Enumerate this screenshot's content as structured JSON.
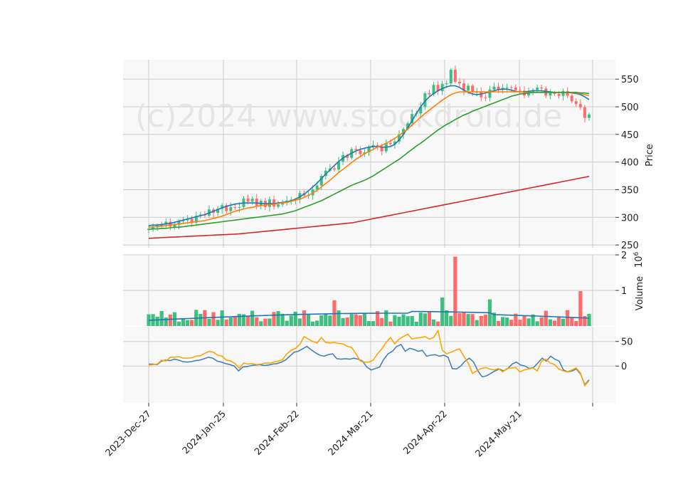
{
  "watermark": "(c)2024 www.stockdroid.de",
  "colors": {
    "up": "#26a69a",
    "up_fill": "#3fbf7f",
    "down": "#ef5350",
    "down_fill": "#ff6b6b",
    "ma_fast": "#1f77b4",
    "ma_mid": "#ff7f0e",
    "ma_slow": "#2ca02c",
    "ma_long": "#d62728",
    "vol_ma": "#1f77b4",
    "osc_a": "#4682b4",
    "osc_b": "#ffa500",
    "panel_bg": "#f8f8f8",
    "grid": "#cccccc"
  },
  "chart_data": [
    {
      "type": "candlestick",
      "ylabel": "Price",
      "ylim": [
        245,
        585
      ],
      "yticks": [
        "250",
        "300",
        "350",
        "400",
        "450",
        "500",
        "550"
      ],
      "grid": true,
      "ohlc": [],
      "series_ma": [
        {
          "values": [
            285,
            286,
            286,
            287,
            288,
            289,
            291,
            293,
            295,
            297,
            299,
            301,
            303,
            305,
            308,
            311,
            314,
            317,
            320,
            322,
            324,
            325,
            326,
            326,
            326,
            326,
            325,
            325,
            325,
            325,
            326,
            327,
            328,
            330,
            333,
            337,
            342,
            348,
            355,
            362,
            370,
            378,
            386,
            394,
            401,
            407,
            412,
            416,
            420,
            423,
            425,
            427,
            428,
            428,
            427,
            427,
            428,
            432,
            440,
            450,
            462,
            475,
            488,
            500,
            510,
            518,
            524,
            529,
            533,
            536,
            538,
            538,
            535,
            530,
            526,
            523,
            522,
            523,
            525,
            527,
            529,
            531,
            532,
            532,
            530,
            528,
            527,
            527,
            528,
            529,
            529,
            529,
            528,
            527,
            526,
            526,
            526,
            526,
            525,
            524,
            522,
            518,
            513
          ]
        },
        {
          "values": [
            282,
            283,
            283,
            284,
            285,
            286,
            287,
            288,
            289,
            290,
            291,
            292,
            293,
            294,
            296,
            298,
            300,
            302,
            305,
            308,
            311,
            313,
            315,
            317,
            318,
            320,
            321,
            322,
            323,
            324,
            325,
            326,
            327,
            329,
            331,
            333,
            336,
            340,
            344,
            349,
            355,
            361,
            367,
            374,
            381,
            387,
            393,
            399,
            405,
            410,
            415,
            419,
            423,
            427,
            430,
            434,
            438,
            443,
            448,
            454,
            460,
            467,
            474,
            481,
            488,
            494,
            500,
            506,
            512,
            517,
            522,
            525,
            527,
            527,
            527,
            527,
            527,
            527,
            527,
            527,
            527,
            527,
            527,
            527,
            527,
            527,
            527,
            526,
            526,
            526,
            526,
            526,
            526,
            526,
            526,
            526,
            526,
            526,
            525,
            525,
            524,
            522,
            520
          ]
        },
        {
          "values": [
            278,
            279,
            279,
            280,
            280,
            281,
            282,
            282,
            283,
            284,
            285,
            286,
            287,
            288,
            289,
            290,
            291,
            292,
            293,
            294,
            295,
            296,
            297,
            298,
            299,
            300,
            301,
            302,
            303,
            304,
            305,
            306,
            308,
            310,
            312,
            315,
            318,
            321,
            324,
            327,
            330,
            334,
            338,
            342,
            346,
            350,
            354,
            358,
            361,
            364,
            367,
            371,
            375,
            380,
            385,
            390,
            395,
            400,
            405,
            411,
            417,
            423,
            429,
            434,
            440,
            446,
            452,
            458,
            463,
            468,
            472,
            477,
            481,
            485,
            488,
            492,
            495,
            498,
            501,
            504,
            507,
            510,
            513,
            516,
            519,
            521,
            523,
            524,
            525,
            526,
            526,
            526,
            526,
            526,
            526,
            526,
            526,
            526,
            526,
            526,
            525,
            525,
            524
          ]
        },
        {
          "values": [
            262,
            262.5,
            263,
            263.5,
            264,
            264.5,
            265,
            265.5,
            266,
            266.5,
            267,
            267.5,
            268,
            268.5,
            269,
            269.5,
            270,
            271,
            272,
            273,
            274,
            275,
            276,
            277,
            278,
            279,
            280,
            281,
            282,
            283,
            284,
            285,
            286,
            287,
            288,
            289,
            290,
            292,
            294,
            296,
            298,
            300,
            302,
            304,
            306,
            308,
            310,
            312,
            314,
            316,
            318,
            320,
            322,
            324,
            326,
            328,
            330,
            332,
            334,
            336,
            338,
            340,
            342,
            344,
            346,
            348,
            350,
            352,
            354,
            356,
            358,
            360,
            362,
            364,
            366,
            368,
            370,
            372,
            374
          ]
        }
      ]
    },
    {
      "type": "bar",
      "ylabel": "Volume",
      "unit_label": "10^6",
      "ylim": [
        0,
        2
      ],
      "yticks": [
        "1",
        "2"
      ],
      "series_volume_ma": true
    },
    {
      "type": "line",
      "ylim": [
        -75,
        80
      ],
      "yticks": [
        "0",
        "50"
      ],
      "series": [
        {
          "values": [
            4,
            4,
            3,
            10,
            12,
            11,
            14,
            12,
            9,
            8,
            9,
            11,
            12,
            15,
            18,
            16,
            10,
            8,
            5,
            3,
            0,
            -10,
            -2,
            -1,
            1,
            2,
            3,
            1,
            2,
            4,
            5,
            8,
            12,
            20,
            28,
            30,
            35,
            40,
            33,
            27,
            22,
            20,
            23,
            25,
            15,
            14,
            15,
            14,
            16,
            14,
            10,
            -2,
            -8,
            -5,
            -2,
            14,
            25,
            30,
            40,
            44,
            30,
            36,
            34,
            30,
            32,
            20,
            22,
            23,
            20,
            22,
            18,
            -5,
            -6,
            0,
            10,
            16,
            8,
            -10,
            -22,
            -20,
            -15,
            -10,
            -6,
            -10,
            -5,
            4,
            8,
            2,
            0,
            -5,
            -3,
            6,
            16,
            10,
            20,
            14,
            10,
            -8,
            -12,
            -10,
            -6,
            -16,
            -38,
            -28
          ]
        },
        {
          "values": [
            2,
            3,
            4,
            12,
            10,
            18,
            18,
            19,
            16,
            16,
            17,
            20,
            21,
            26,
            30,
            28,
            22,
            20,
            12,
            10,
            5,
            -4,
            6,
            4,
            5,
            3,
            4,
            6,
            6,
            8,
            10,
            13,
            25,
            32,
            36,
            44,
            60,
            55,
            50,
            47,
            58,
            48,
            47,
            48,
            46,
            45,
            40,
            38,
            25,
            10,
            8,
            8,
            12,
            25,
            35,
            48,
            58,
            45,
            55,
            60,
            65,
            55,
            57,
            58,
            60,
            55,
            58,
            72,
            32,
            25,
            28,
            32,
            35,
            20,
            6,
            -15,
            -10,
            -5,
            -3,
            -6,
            -8,
            -5,
            -12,
            -5,
            -4,
            -3,
            -12,
            -8,
            -6,
            -4,
            -10,
            10,
            14,
            6,
            3,
            -6,
            -10,
            -12,
            -8,
            -4,
            -14,
            -40,
            -30
          ]
        }
      ]
    }
  ],
  "x_ticks": [
    "2023-Dec-27",
    "2024-Jan-25",
    "2024-Feb-22",
    "2024-Mar-21",
    "2024-Apr-22",
    "2024-May-21"
  ],
  "volume_axis": {
    "label": "Volume",
    "exponent": "10",
    "exponent_power": "6"
  },
  "price_axis": {
    "label": "Price"
  }
}
